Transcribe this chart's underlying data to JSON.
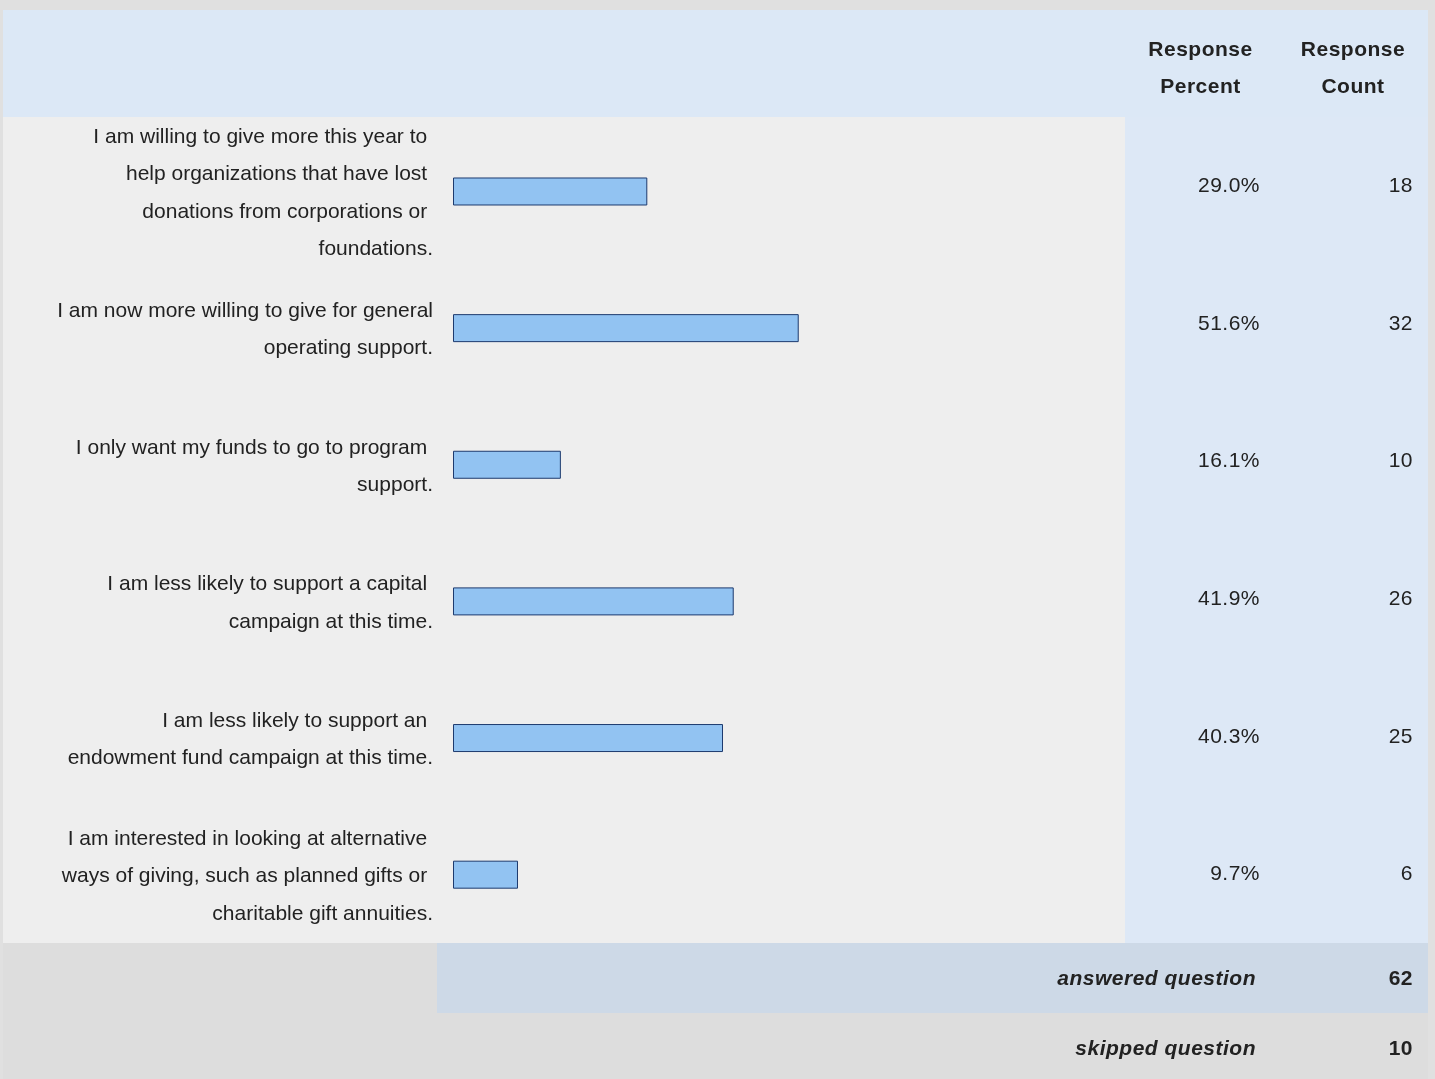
{
  "chart_data": {
    "type": "bar",
    "orientation": "horizontal",
    "categories": [
      "I am willing to give more this year to help organizations that have lost donations from corporations or foundations.",
      "I am now more willing to give for general operating support.",
      "I only want my funds to go to program support.",
      "I am less likely to support a capital campaign at this time.",
      "I am less likely to support an endowment fund campaign at this time.",
      "I am interested in looking at alternative ways of giving, such as planned gifts or charitable gift annuities."
    ],
    "series": [
      {
        "color": "#92c3f2",
        "values": [
          29.0,
          51.6,
          16.1,
          41.9,
          40.3,
          9.7
        ],
        "value_labels": [
          "29.0%",
          "51.6%",
          "16.1%",
          "41.9%",
          "40.3%",
          "9.7%"
        ]
      }
    ],
    "tick_labels": "y",
    "annotations": [
      "Response Percent",
      "Response Count",
      "18",
      "32",
      "10",
      "26",
      "25",
      "6",
      "answered question",
      "62",
      "skipped question",
      "10"
    ]
  }
}
